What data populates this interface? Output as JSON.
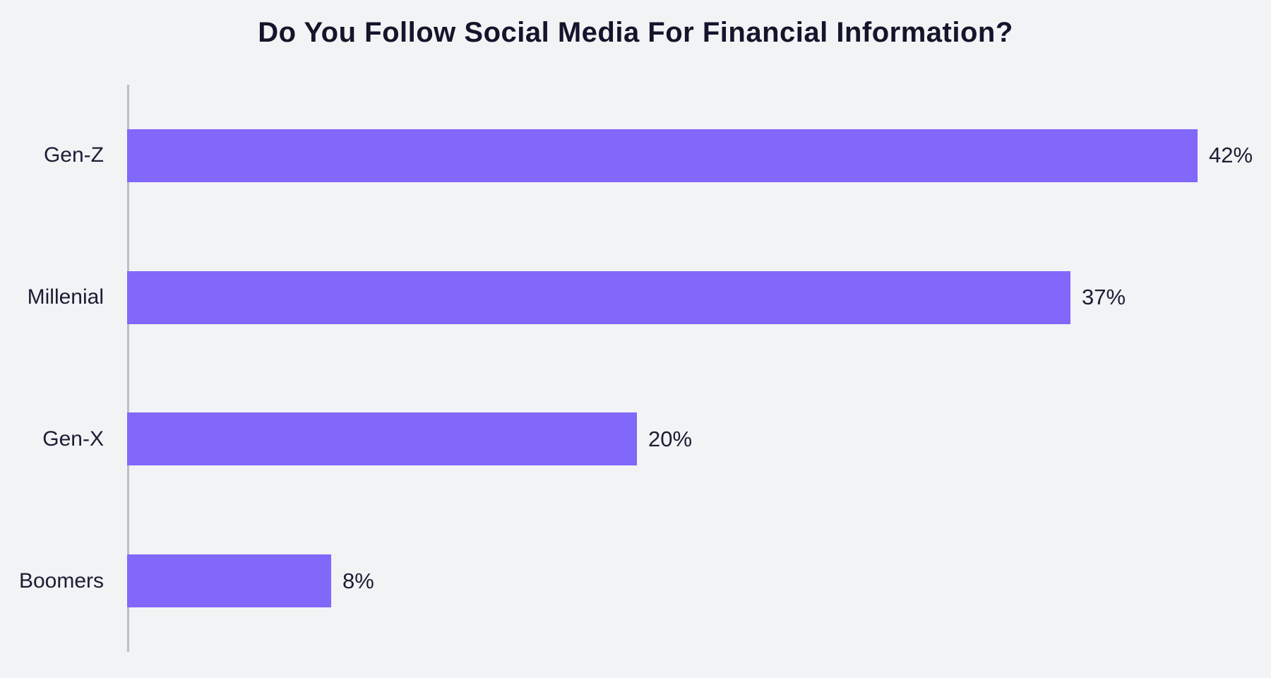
{
  "chart_data": {
    "type": "bar",
    "orientation": "horizontal",
    "title": "Do You Follow Social Media For Financial Information?",
    "categories": [
      "Gen-Z",
      "Millenial",
      "Gen-X",
      "Boomers"
    ],
    "values": [
      42,
      37,
      20,
      8
    ],
    "value_labels": [
      "42%",
      "37%",
      "20%",
      "8%"
    ],
    "unit": "%",
    "xlabel": "",
    "ylabel": "",
    "xlim": [
      0,
      45
    ],
    "grid": false,
    "legend": false,
    "layout_hint": "value labels at right end of each bar; category labels left of y-axis line",
    "colors": {
      "bar": "#8267FB",
      "background": "#F2F3F5",
      "title_text": "#14142B",
      "label_text": "#1C1C33",
      "axis_line": "#BDBEC6"
    }
  }
}
